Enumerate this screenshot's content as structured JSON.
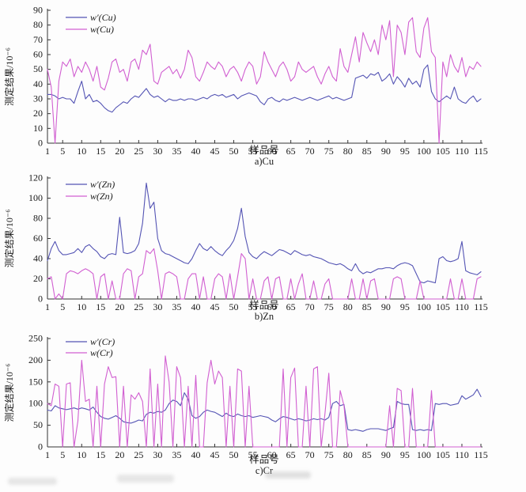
{
  "figure_xlabel": "样品号",
  "figure_ylabel": "测定结果/10⁻⁶",
  "colors": {
    "series_primary": "#5454b4",
    "series_secondary": "#d15fd1",
    "axis": "#333333"
  },
  "chart_data": [
    {
      "type": "line",
      "title": "a)Cu",
      "xlabel": "样品号",
      "ylabel": "测定结果/10⁻⁶",
      "x_range": [
        1,
        115
      ],
      "xticks": [
        1,
        5,
        10,
        15,
        20,
        25,
        30,
        35,
        40,
        45,
        50,
        55,
        60,
        65,
        70,
        75,
        80,
        85,
        90,
        95,
        100,
        105,
        110,
        115
      ],
      "ylim": [
        0,
        90
      ],
      "yticks": [
        0,
        10,
        20,
        30,
        40,
        50,
        60,
        70,
        80,
        90
      ],
      "grid": false,
      "legend_position": "top-left-inside",
      "series": [
        {
          "name": "w′(Cu)",
          "color": "#5454b4",
          "values": [
            33,
            33,
            32,
            30,
            31,
            30,
            30,
            27,
            35,
            42,
            30,
            33,
            28,
            29,
            27,
            24,
            22,
            21,
            24,
            26,
            28,
            27,
            30,
            32,
            31,
            34,
            37,
            33,
            31,
            32,
            30,
            28,
            30,
            29,
            29,
            30,
            29,
            30,
            30,
            29,
            30,
            31,
            30,
            32,
            33,
            32,
            33,
            31,
            32,
            33,
            30,
            32,
            33,
            34,
            33,
            32,
            28,
            26,
            30,
            31,
            29,
            28,
            30,
            29,
            30,
            31,
            30,
            29,
            30,
            31,
            30,
            29,
            30,
            31,
            32,
            30,
            31,
            30,
            29,
            30,
            31,
            44,
            45,
            46,
            44,
            47,
            46,
            48,
            42,
            44,
            47,
            40,
            45,
            42,
            38,
            44,
            40,
            42,
            38,
            50,
            53,
            35,
            30,
            28,
            30,
            32,
            30,
            38,
            30,
            28,
            27,
            30,
            32,
            28,
            30
          ]
        },
        {
          "name": "w(Cu)",
          "color": "#d15fd1",
          "values": [
            50,
            38,
            0,
            42,
            55,
            52,
            57,
            45,
            52,
            48,
            55,
            50,
            42,
            52,
            38,
            36,
            44,
            55,
            57,
            48,
            50,
            42,
            55,
            57,
            50,
            63,
            60,
            67,
            42,
            40,
            48,
            50,
            52,
            47,
            50,
            44,
            50,
            63,
            58,
            45,
            42,
            48,
            55,
            52,
            50,
            55,
            52,
            45,
            50,
            52,
            48,
            42,
            50,
            55,
            52,
            40,
            45,
            62,
            55,
            50,
            45,
            52,
            55,
            50,
            42,
            45,
            55,
            50,
            48,
            50,
            52,
            45,
            40,
            47,
            52,
            45,
            42,
            64,
            52,
            48,
            60,
            72,
            55,
            75,
            68,
            62,
            70,
            60,
            80,
            70,
            83,
            45,
            80,
            75,
            60,
            82,
            85,
            62,
            58,
            78,
            85,
            62,
            58,
            0,
            55,
            45,
            60,
            52,
            48,
            58,
            45,
            52,
            50,
            55,
            52
          ]
        }
      ]
    },
    {
      "type": "line",
      "title": "b)Zn",
      "xlabel": "样品号",
      "ylabel": "测定结果/10⁻⁶",
      "x_range": [
        1,
        115
      ],
      "xticks": [
        1,
        5,
        10,
        15,
        20,
        25,
        30,
        35,
        40,
        45,
        50,
        55,
        60,
        65,
        70,
        75,
        80,
        85,
        90,
        95,
        100,
        105,
        110,
        115
      ],
      "ylim": [
        0,
        120
      ],
      "yticks": [
        0,
        20,
        40,
        60,
        80,
        100,
        120
      ],
      "grid": false,
      "legend_position": "top-left-inside",
      "series": [
        {
          "name": "w′(Zn)",
          "color": "#5454b4",
          "values": [
            38,
            50,
            57,
            48,
            44,
            44,
            45,
            46,
            50,
            46,
            52,
            54,
            50,
            47,
            42,
            40,
            44,
            45,
            44,
            81,
            46,
            45,
            46,
            48,
            55,
            75,
            115,
            90,
            96,
            60,
            48,
            45,
            44,
            42,
            40,
            38,
            36,
            35,
            40,
            48,
            55,
            50,
            48,
            52,
            48,
            45,
            43,
            48,
            52,
            58,
            70,
            90,
            62,
            46,
            42,
            40,
            44,
            47,
            45,
            43,
            46,
            49,
            48,
            46,
            44,
            48,
            46,
            44,
            43,
            44,
            42,
            41,
            40,
            38,
            36,
            35,
            34,
            35,
            33,
            30,
            28,
            35,
            28,
            25,
            27,
            26,
            28,
            30,
            30,
            31,
            31,
            30,
            33,
            35,
            36,
            35,
            33,
            25,
            17,
            16,
            18,
            17,
            16,
            40,
            42,
            38,
            37,
            38,
            40,
            57,
            28,
            26,
            25,
            24,
            27
          ]
        },
        {
          "name": "w(Zn)",
          "color": "#d15fd1",
          "values": [
            20,
            22,
            0,
            5,
            0,
            25,
            28,
            27,
            25,
            28,
            30,
            28,
            25,
            0,
            22,
            25,
            0,
            18,
            0,
            0,
            25,
            30,
            28,
            0,
            22,
            25,
            48,
            45,
            50,
            28,
            0,
            25,
            27,
            25,
            22,
            0,
            0,
            20,
            25,
            25,
            0,
            22,
            0,
            0,
            20,
            25,
            22,
            0,
            25,
            0,
            22,
            45,
            40,
            0,
            20,
            0,
            0,
            18,
            22,
            0,
            20,
            22,
            0,
            0,
            20,
            0,
            15,
            25,
            0,
            0,
            18,
            0,
            0,
            15,
            20,
            0,
            0,
            0,
            0,
            0,
            20,
            0,
            0,
            20,
            0,
            18,
            20,
            0,
            0,
            0,
            0,
            20,
            22,
            20,
            0,
            0,
            0,
            0,
            18,
            0,
            0,
            0,
            0,
            0,
            0,
            0,
            20,
            0,
            0,
            20,
            0,
            0,
            0,
            20,
            22
          ]
        }
      ]
    },
    {
      "type": "line",
      "title": "c)Cr",
      "xlabel": "样品号",
      "ylabel": "测定结果/10⁻⁶",
      "x_range": [
        1,
        115
      ],
      "xticks": [
        1,
        5,
        10,
        15,
        20,
        25,
        30,
        35,
        40,
        45,
        50,
        55,
        60,
        65,
        70,
        75,
        80,
        85,
        90,
        95,
        100,
        105,
        110,
        115
      ],
      "ylim": [
        0,
        250
      ],
      "yticks": [
        0,
        50,
        100,
        150,
        200,
        250
      ],
      "grid": false,
      "legend_position": "top-left-inside",
      "series": [
        {
          "name": "w′(Cr)",
          "color": "#5454b4",
          "values": [
            85,
            83,
            95,
            90,
            88,
            86,
            88,
            90,
            87,
            90,
            88,
            85,
            92,
            80,
            70,
            66,
            64,
            68,
            72,
            66,
            58,
            56,
            55,
            58,
            62,
            60,
            75,
            80,
            78,
            82,
            80,
            85,
            100,
            108,
            105,
            95,
            125,
            110,
            72,
            66,
            70,
            80,
            85,
            82,
            80,
            75,
            70,
            78,
            72,
            70,
            76,
            72,
            70,
            72,
            68,
            70,
            72,
            70,
            68,
            62,
            58,
            65,
            70,
            68,
            65,
            62,
            65,
            63,
            60,
            62,
            65,
            63,
            65,
            62,
            68,
            100,
            105,
            95,
            98,
            40,
            38,
            40,
            38,
            36,
            40,
            42,
            42,
            42,
            40,
            38,
            42,
            45,
            105,
            100,
            98,
            98,
            40,
            38,
            40,
            38,
            40,
            38,
            100,
            98,
            100,
            100,
            96,
            98,
            100,
            118,
            110,
            115,
            120,
            133,
            116
          ]
        },
        {
          "name": "w(Cr)",
          "color": "#d15fd1",
          "values": [
            100,
            95,
            145,
            140,
            0,
            145,
            148,
            0,
            60,
            200,
            105,
            110,
            0,
            140,
            0,
            145,
            185,
            160,
            162,
            0,
            140,
            0,
            120,
            110,
            125,
            105,
            0,
            180,
            0,
            145,
            0,
            210,
            150,
            0,
            185,
            160,
            0,
            140,
            0,
            165,
            0,
            0,
            148,
            200,
            145,
            175,
            160,
            0,
            140,
            0,
            180,
            175,
            0,
            140,
            0,
            0,
            0,
            0,
            0,
            0,
            0,
            0,
            180,
            0,
            160,
            182,
            0,
            0,
            140,
            0,
            180,
            185,
            0,
            78,
            170,
            0,
            0,
            130,
            95,
            0,
            0,
            0,
            0,
            0,
            0,
            0,
            0,
            0,
            0,
            0,
            95,
            0,
            135,
            130,
            0,
            0,
            135,
            0,
            0,
            0,
            0,
            130,
            0,
            0,
            0,
            0,
            0,
            0,
            0,
            0,
            0,
            0,
            0,
            0,
            0
          ]
        }
      ]
    }
  ]
}
